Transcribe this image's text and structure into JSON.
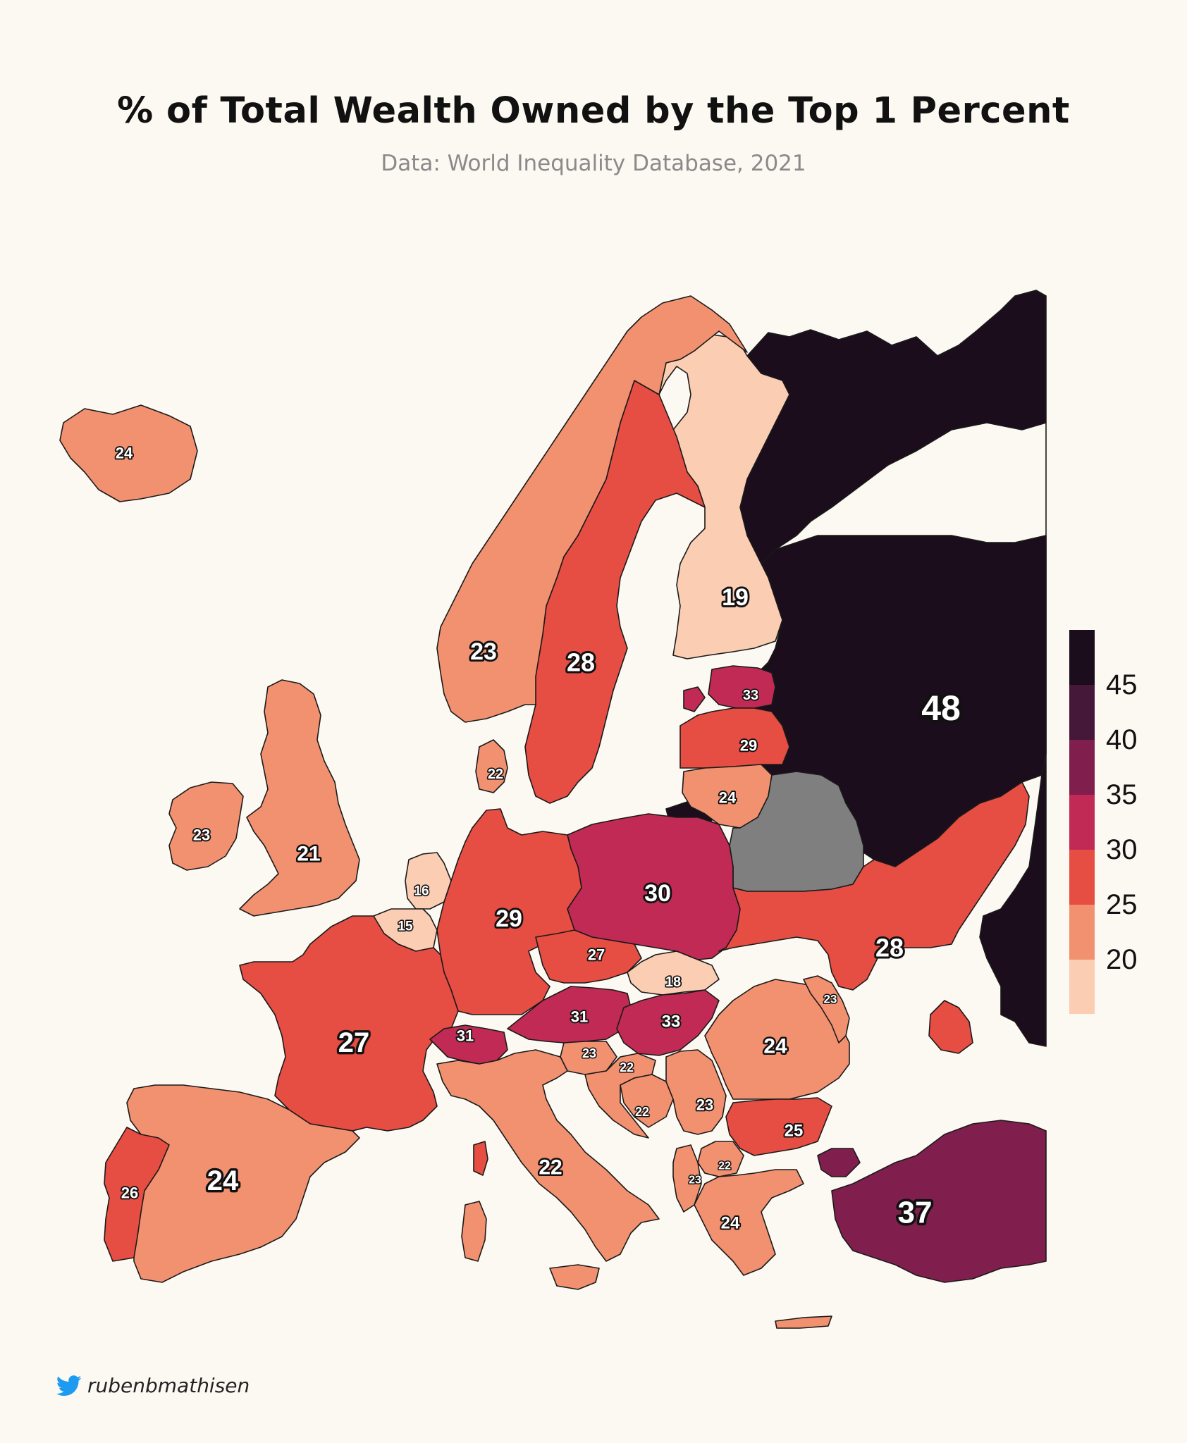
{
  "title": "% of Total Wealth Owned by the Top 1 Percent",
  "subtitle": "Data: World Inequality Database, 2021",
  "credit": "rubenbmathisen",
  "colors": {
    "background": "#fcf9f2",
    "no_data": "#7f7f7f",
    "border": "#1a1a1a",
    "scale": [
      "#fbcdb3",
      "#f29170",
      "#e64d43",
      "#c02a55",
      "#801e4e",
      "#451839",
      "#1b0d1c"
    ]
  },
  "legend": {
    "ticks": [
      "45",
      "40",
      "35",
      "30",
      "25",
      "20"
    ]
  },
  "map_data": {
    "type": "choropleth",
    "regions": [
      {
        "name": "Russia",
        "label": "48",
        "value": 48
      },
      {
        "name": "Turkey",
        "label": "37",
        "value": 37
      },
      {
        "name": "Estonia",
        "label": "33",
        "value": 33
      },
      {
        "name": "Hungary",
        "label": "33",
        "value": 33
      },
      {
        "name": "Switzerland",
        "label": "31",
        "value": 31
      },
      {
        "name": "Austria",
        "label": "31",
        "value": 31
      },
      {
        "name": "Poland",
        "label": "30",
        "value": 30
      },
      {
        "name": "Germany",
        "label": "29",
        "value": 29
      },
      {
        "name": "Latvia",
        "label": "29",
        "value": 29
      },
      {
        "name": "Sweden",
        "label": "28",
        "value": 28
      },
      {
        "name": "Ukraine",
        "label": "28",
        "value": 28
      },
      {
        "name": "France",
        "label": "27",
        "value": 27
      },
      {
        "name": "Czechia",
        "label": "27",
        "value": 27
      },
      {
        "name": "Portugal",
        "label": "26",
        "value": 26
      },
      {
        "name": "Bulgaria",
        "label": "25",
        "value": 25
      },
      {
        "name": "Iceland",
        "label": "24",
        "value": 24
      },
      {
        "name": "Lithuania",
        "label": "24",
        "value": 24
      },
      {
        "name": "Spain",
        "label": "24",
        "value": 24
      },
      {
        "name": "Romania",
        "label": "24",
        "value": 24
      },
      {
        "name": "Greece",
        "label": "24",
        "value": 24
      },
      {
        "name": "Norway",
        "label": "23",
        "value": 23
      },
      {
        "name": "Ireland",
        "label": "23",
        "value": 23
      },
      {
        "name": "Slovenia",
        "label": "23",
        "value": 23
      },
      {
        "name": "Serbia",
        "label": "23",
        "value": 23
      },
      {
        "name": "Moldova",
        "label": "23",
        "value": 23
      },
      {
        "name": "Albania",
        "label": "23",
        "value": 23
      },
      {
        "name": "Denmark",
        "label": "22",
        "value": 22
      },
      {
        "name": "Italy",
        "label": "22",
        "value": 22
      },
      {
        "name": "Croatia",
        "label": "22",
        "value": 22
      },
      {
        "name": "Bosnia and Herzegovina",
        "label": "22",
        "value": 22
      },
      {
        "name": "North Macedonia",
        "label": "22",
        "value": 22
      },
      {
        "name": "United Kingdom",
        "label": "21",
        "value": 21
      },
      {
        "name": "Finland",
        "label": "19",
        "value": 19
      },
      {
        "name": "Slovakia",
        "label": "18",
        "value": 18
      },
      {
        "name": "Netherlands",
        "label": "16",
        "value": 16
      },
      {
        "name": "Belgium",
        "label": "15",
        "value": 15
      },
      {
        "name": "Belarus",
        "label": "",
        "value": null
      }
    ]
  }
}
